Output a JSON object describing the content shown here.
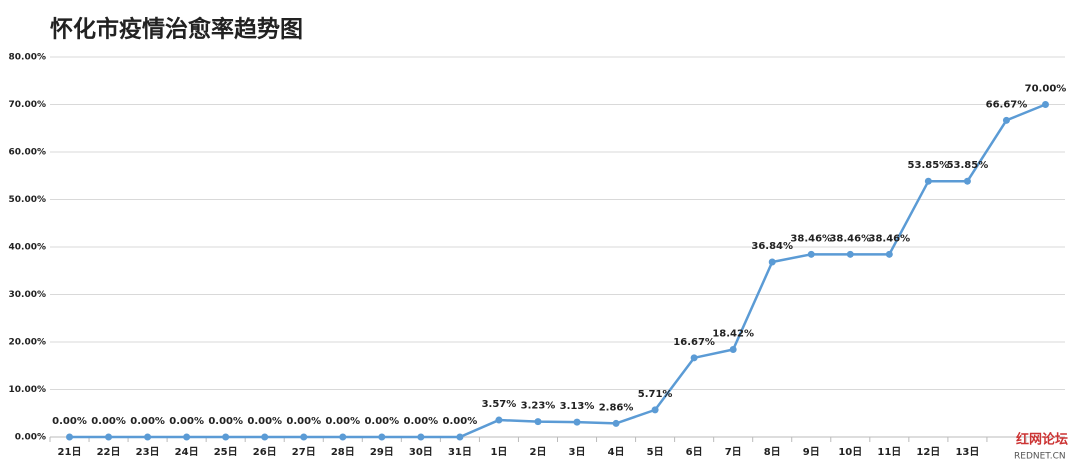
{
  "chart_data": {
    "type": "line",
    "title": "怀化市疫情治愈率趋势图",
    "categories": [
      "21日",
      "22日",
      "23日",
      "24日",
      "25日",
      "26日",
      "27日",
      "28日",
      "29日",
      "30日",
      "31日",
      "1日",
      "2日",
      "3日",
      "4日",
      "5日",
      "6日",
      "7日",
      "8日",
      "9日",
      "10日",
      "11日",
      "12日",
      "13日",
      null,
      null
    ],
    "series": [
      {
        "name": "治愈率",
        "color": "#5b9bd5",
        "values": [
          0,
          0,
          0,
          0,
          0,
          0,
          0,
          0,
          0,
          0,
          0,
          3.57,
          3.23,
          3.13,
          2.86,
          5.71,
          16.67,
          18.42,
          36.84,
          38.46,
          38.46,
          38.46,
          53.85,
          53.85,
          66.67,
          70.0
        ],
        "value_labels": [
          "0.00%",
          "0.00%",
          "0.00%",
          "0.00%",
          "0.00%",
          "0.00%",
          "0.00%",
          "0.00%",
          "0.00%",
          "0.00%",
          "0.00%",
          "3.57%",
          "3.23%",
          "3.13%",
          "2.86%",
          "5.71%",
          "16.67%",
          "18.42%",
          "36.84%",
          "38.46%",
          "38.46%",
          "38.46%",
          "53.85%",
          "53.85%",
          "66.67%",
          "70.00%"
        ]
      }
    ],
    "ylim": [
      0,
      80
    ],
    "yticks": [
      {
        "value": 0,
        "label": "0.00%"
      },
      {
        "value": 10,
        "label": "10.00%"
      },
      {
        "value": 20,
        "label": "20.00%"
      },
      {
        "value": 30,
        "label": "30.00%"
      },
      {
        "value": 40,
        "label": "40.00%"
      },
      {
        "value": 50,
        "label": "50.00%"
      },
      {
        "value": 60,
        "label": "60.00%"
      },
      {
        "value": 70,
        "label": "70.00%"
      },
      {
        "value": 80,
        "label": "80.00%"
      }
    ],
    "grid": true,
    "watermark": [
      "红网论坛",
      "REDNET.CN"
    ]
  }
}
